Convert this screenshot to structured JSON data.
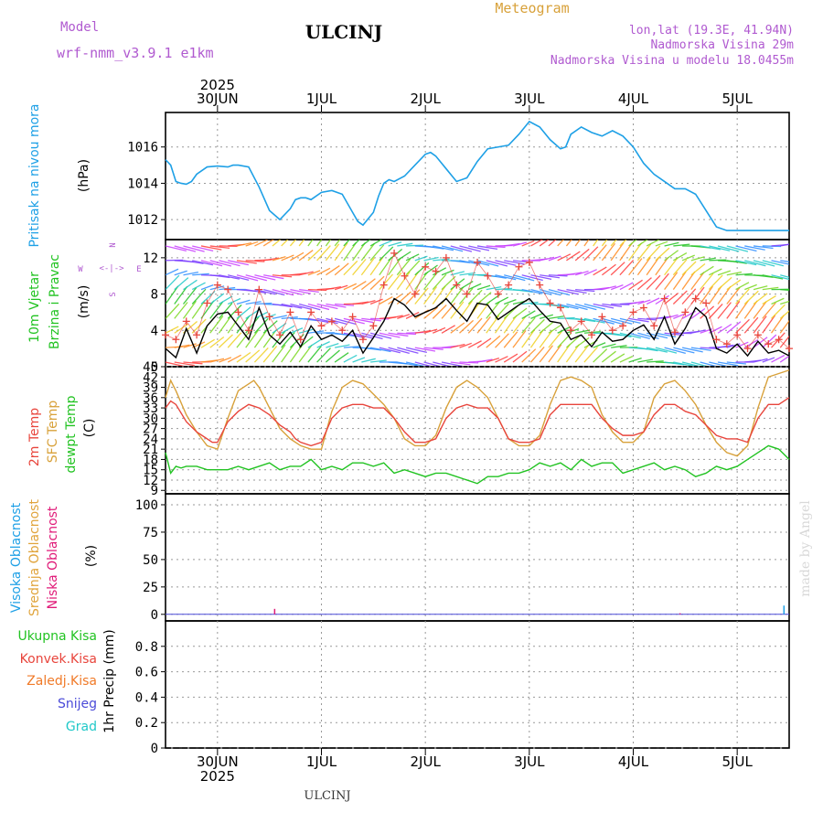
{
  "header": {
    "model_label": "Model",
    "model_name": "wrf-nmm_v3.9.1 e1km",
    "station": "ULCINJ",
    "chart_title": "Meteogram",
    "coords": "lon,lat (19.3E, 41.94N)",
    "elevation": "Nadmorska Visina 29m",
    "model_elevation": "Nadmorska Visina u modelu 18.0455m"
  },
  "footer": {
    "station": "ULCINJ",
    "watermark": "made by Angel"
  },
  "colors": {
    "pressure": "#1ea0e6",
    "temp": "#e8453c",
    "sfc_temp": "#d8a13a",
    "dewpt": "#22c322",
    "high_cloud": "#1ea0e6",
    "mid_cloud": "#e0a43c",
    "low_cloud": "#e01a78",
    "total_precip": "#22c322",
    "conv_precip": "#e8453c",
    "frozen_precip": "#f07a28",
    "snow": "#4a4ad8",
    "graupel": "#20c8c8",
    "model": "#b05ad0"
  },
  "chart_data": [
    {
      "type": "line",
      "panel": "pressure",
      "ylabel": [
        "Pritisak na nivou mora",
        "(hPa)"
      ],
      "ylim": [
        1010.9,
        1017.9
      ],
      "yticks": [
        1012,
        1014,
        1016
      ],
      "x_unit": "days since 30JUN 00:00 (2025)",
      "x_ticks": [
        "30JUN",
        "1JUL",
        "2JUL",
        "3JUL",
        "4JUL",
        "5JUL"
      ],
      "x_year": "2025",
      "xlim": [
        -0.5,
        5.5
      ],
      "series": [
        {
          "name": "Pritisak na nivou mora",
          "x": [
            -0.5,
            -0.45,
            -0.4,
            -0.35,
            -0.3,
            -0.25,
            -0.2,
            -0.1,
            0.0,
            0.1,
            0.15,
            0.2,
            0.3,
            0.4,
            0.5,
            0.6,
            0.7,
            0.75,
            0.8,
            0.85,
            0.9,
            1.0,
            1.1,
            1.2,
            1.3,
            1.35,
            1.4,
            1.5,
            1.55,
            1.6,
            1.65,
            1.7,
            1.8,
            1.9,
            2.0,
            2.05,
            2.1,
            2.2,
            2.3,
            2.4,
            2.5,
            2.6,
            2.7,
            2.8,
            2.9,
            3.0,
            3.1,
            3.2,
            3.3,
            3.35,
            3.4,
            3.5,
            3.6,
            3.7,
            3.8,
            3.9,
            4.0,
            4.1,
            4.2,
            4.3,
            4.4,
            4.5,
            4.6,
            4.7,
            4.8,
            4.9,
            5.0,
            5.1,
            5.2,
            5.3,
            5.4,
            5.5
          ],
          "y": [
            1015.3,
            1015.0,
            1014.1,
            1014.0,
            1013.95,
            1014.1,
            1014.5,
            1014.9,
            1014.95,
            1014.9,
            1015.0,
            1015.0,
            1014.9,
            1013.8,
            1012.5,
            1012.0,
            1012.6,
            1013.1,
            1013.2,
            1013.2,
            1013.1,
            1013.5,
            1013.6,
            1013.4,
            1012.4,
            1011.9,
            1011.7,
            1012.4,
            1013.3,
            1014.0,
            1014.2,
            1014.1,
            1014.4,
            1015.0,
            1015.6,
            1015.7,
            1015.5,
            1014.8,
            1014.1,
            1014.3,
            1015.2,
            1015.9,
            1016.0,
            1016.1,
            1016.7,
            1017.4,
            1017.1,
            1016.4,
            1015.9,
            1016.0,
            1016.7,
            1017.1,
            1016.8,
            1016.6,
            1016.9,
            1016.6,
            1016.0,
            1015.1,
            1014.5,
            1014.1,
            1013.7,
            1013.7,
            1013.4,
            1012.5,
            1011.6,
            1011.4,
            1011.4,
            1011.4,
            1011.4,
            1011.4,
            1011.4,
            1011.4
          ]
        }
      ]
    },
    {
      "type": "line",
      "panel": "wind",
      "ylabel": [
        "10m Vjetar",
        "Brzina i Pravac",
        "(m/s)"
      ],
      "compass": [
        "N",
        "E",
        "S",
        "W"
      ],
      "ylim": [
        0,
        14
      ],
      "yticks": [
        0,
        4,
        8,
        12
      ],
      "series": [
        {
          "name": "Brzina",
          "x": [
            -0.5,
            -0.4,
            -0.3,
            -0.2,
            -0.1,
            0.0,
            0.1,
            0.2,
            0.3,
            0.4,
            0.5,
            0.6,
            0.7,
            0.8,
            0.9,
            1.0,
            1.1,
            1.2,
            1.3,
            1.4,
            1.5,
            1.6,
            1.7,
            1.8,
            1.9,
            2.0,
            2.1,
            2.2,
            2.3,
            2.4,
            2.5,
            2.6,
            2.7,
            2.8,
            2.9,
            3.0,
            3.1,
            3.2,
            3.3,
            3.4,
            3.5,
            3.6,
            3.7,
            3.8,
            3.9,
            4.0,
            4.1,
            4.2,
            4.3,
            4.4,
            4.5,
            4.6,
            4.7,
            4.8,
            4.9,
            5.0,
            5.1,
            5.2,
            5.3,
            5.4,
            5.5
          ],
          "y": [
            2.0,
            1.0,
            4.2,
            1.5,
            4.5,
            5.8,
            6.0,
            4.5,
            3.0,
            6.5,
            3.5,
            2.5,
            3.8,
            2.2,
            4.5,
            3.0,
            3.5,
            2.8,
            4.0,
            1.5,
            3.2,
            5.0,
            7.5,
            6.8,
            5.5,
            6.0,
            6.5,
            7.5,
            6.2,
            5.0,
            7.0,
            6.8,
            5.2,
            6.0,
            6.8,
            7.5,
            6.2,
            5.0,
            4.8,
            3.0,
            3.5,
            2.2,
            3.8,
            2.8,
            3.0,
            4.0,
            4.6,
            3.0,
            5.5,
            2.5,
            4.2,
            6.5,
            5.5,
            2.0,
            1.5,
            2.5,
            1.2,
            2.8,
            1.5,
            1.8,
            1.2
          ]
        },
        {
          "name": "Udari",
          "x": [
            -0.5,
            -0.4,
            -0.3,
            -0.2,
            -0.1,
            0.0,
            0.1,
            0.2,
            0.3,
            0.4,
            0.5,
            0.6,
            0.7,
            0.8,
            0.9,
            1.0,
            1.1,
            1.2,
            1.3,
            1.4,
            1.5,
            1.6,
            1.7,
            1.8,
            1.9,
            2.0,
            2.1,
            2.2,
            2.3,
            2.4,
            2.5,
            2.6,
            2.7,
            2.8,
            2.9,
            3.0,
            3.1,
            3.2,
            3.3,
            3.4,
            3.5,
            3.6,
            3.7,
            3.8,
            3.9,
            4.0,
            4.1,
            4.2,
            4.3,
            4.4,
            4.5,
            4.6,
            4.7,
            4.8,
            4.9,
            5.0,
            5.1,
            5.2,
            5.3,
            5.4,
            5.5
          ],
          "y": [
            3.5,
            3.0,
            5.0,
            3.5,
            7.0,
            9.0,
            8.5,
            6.0,
            4.0,
            8.5,
            5.5,
            3.5,
            6.0,
            3.0,
            6.0,
            4.5,
            5.0,
            4.0,
            5.5,
            3.0,
            4.5,
            9.0,
            12.5,
            10.0,
            8.0,
            11.0,
            10.5,
            12.0,
            9.0,
            8.0,
            11.5,
            10.0,
            8.0,
            9.0,
            11.0,
            11.5,
            9.0,
            7.0,
            6.5,
            4.0,
            5.0,
            3.5,
            5.5,
            4.0,
            4.5,
            6.0,
            6.5,
            4.5,
            7.5,
            3.8,
            6.0,
            7.5,
            7.0,
            3.0,
            2.5,
            3.5,
            2.0,
            3.5,
            2.5,
            3.0,
            2.0
          ]
        }
      ]
    },
    {
      "type": "line",
      "panel": "temperature",
      "ylabel": [
        "2m Temp",
        "SFC Temp",
        "dewpt Temp",
        "(C)"
      ],
      "ylim": [
        8,
        45
      ],
      "yticks": [
        9,
        12,
        15,
        18,
        21,
        24,
        27,
        30,
        33,
        36,
        39,
        42,
        45
      ],
      "series": [
        {
          "name": "2m Temp",
          "x": [
            -0.5,
            -0.45,
            -0.4,
            -0.3,
            -0.2,
            -0.1,
            -0.05,
            0.0,
            0.1,
            0.2,
            0.3,
            0.35,
            0.4,
            0.5,
            0.6,
            0.7,
            0.75,
            0.8,
            0.9,
            1.0,
            1.1,
            1.2,
            1.3,
            1.4,
            1.5,
            1.6,
            1.7,
            1.8,
            1.9,
            2.0,
            2.1,
            2.2,
            2.3,
            2.4,
            2.5,
            2.6,
            2.7,
            2.8,
            2.9,
            3.0,
            3.1,
            3.2,
            3.3,
            3.4,
            3.5,
            3.6,
            3.7,
            3.8,
            3.9,
            4.0,
            4.1,
            4.2,
            4.3,
            4.4,
            4.5,
            4.6,
            4.7,
            4.8,
            4.9,
            5.0,
            5.1,
            5.2,
            5.3,
            5.4,
            5.5
          ],
          "y": [
            33,
            35,
            34,
            29,
            26,
            24,
            23,
            23,
            29,
            32,
            34,
            33.5,
            33,
            31,
            28,
            26,
            24,
            23,
            22,
            23,
            30,
            33,
            34,
            34,
            33,
            33,
            30,
            26,
            23,
            23,
            24,
            30,
            33,
            34,
            33,
            33,
            30,
            24,
            23,
            23,
            24,
            31,
            34,
            34,
            34,
            34,
            30,
            27,
            25,
            25,
            26,
            31,
            34,
            34,
            32,
            31,
            28,
            25,
            24,
            24,
            23,
            30,
            34,
            34,
            36
          ]
        },
        {
          "name": "SFC Temp",
          "x": [
            -0.5,
            -0.45,
            -0.4,
            -0.3,
            -0.2,
            -0.1,
            0.0,
            0.1,
            0.2,
            0.3,
            0.35,
            0.4,
            0.5,
            0.6,
            0.7,
            0.8,
            0.9,
            1.0,
            1.1,
            1.2,
            1.3,
            1.4,
            1.5,
            1.6,
            1.7,
            1.8,
            1.9,
            2.0,
            2.1,
            2.2,
            2.3,
            2.4,
            2.5,
            2.6,
            2.7,
            2.8,
            2.9,
            3.0,
            3.1,
            3.2,
            3.3,
            3.4,
            3.5,
            3.6,
            3.7,
            3.8,
            3.9,
            4.0,
            4.1,
            4.2,
            4.3,
            4.4,
            4.5,
            4.6,
            4.7,
            4.8,
            4.9,
            5.0,
            5.1,
            5.2,
            5.3,
            5.4,
            5.5
          ],
          "y": [
            36,
            41,
            38,
            31,
            26,
            22,
            21,
            30,
            38,
            40,
            41,
            39,
            33,
            27,
            24,
            22,
            21,
            21,
            32,
            39,
            41,
            40,
            37,
            34,
            30,
            24,
            22,
            22,
            25,
            33,
            39,
            41,
            39,
            36,
            30,
            24,
            22,
            22,
            25,
            34,
            41,
            42,
            41,
            39,
            31,
            26,
            23,
            23,
            26,
            36,
            40,
            41,
            38,
            34,
            28,
            23,
            20,
            19,
            22,
            33,
            42,
            43,
            44
          ]
        },
        {
          "name": "dewpt Temp",
          "x": [
            -0.5,
            -0.45,
            -0.4,
            -0.35,
            -0.3,
            -0.2,
            -0.1,
            0.0,
            0.1,
            0.2,
            0.3,
            0.4,
            0.5,
            0.6,
            0.7,
            0.8,
            0.9,
            1.0,
            1.1,
            1.2,
            1.3,
            1.4,
            1.5,
            1.6,
            1.7,
            1.8,
            1.9,
            2.0,
            2.1,
            2.2,
            2.3,
            2.4,
            2.5,
            2.6,
            2.7,
            2.8,
            2.9,
            3.0,
            3.1,
            3.2,
            3.3,
            3.4,
            3.5,
            3.6,
            3.7,
            3.8,
            3.9,
            4.0,
            4.1,
            4.2,
            4.3,
            4.4,
            4.5,
            4.6,
            4.7,
            4.8,
            4.9,
            5.0,
            5.1,
            5.2,
            5.3,
            5.4,
            5.5
          ],
          "y": [
            20,
            14,
            16,
            15.5,
            16,
            16,
            15,
            15,
            15,
            16,
            15,
            16,
            17,
            15,
            16,
            16,
            18,
            15,
            16,
            15,
            17,
            17,
            16,
            17,
            14,
            15,
            14,
            13,
            14,
            14,
            13,
            12,
            11,
            13,
            13,
            14,
            14,
            15,
            17,
            16,
            17,
            15,
            18,
            16,
            17,
            17,
            14,
            15,
            16,
            17,
            15,
            16,
            15,
            13,
            14,
            16,
            15,
            16,
            18,
            20,
            22,
            21,
            18
          ]
        }
      ]
    },
    {
      "type": "bar",
      "panel": "cloud",
      "ylabel": [
        "Visoka Oblacnost",
        "Srednja Oblacnost",
        "Niska Oblacnost",
        "(%)"
      ],
      "ylim": [
        -6,
        110
      ],
      "yticks": [
        0,
        25,
        50,
        75,
        100
      ],
      "series": [
        {
          "name": "Niska Oblacnost",
          "x": [
            0.55,
            4.45
          ],
          "values": [
            5,
            1
          ]
        },
        {
          "name": "Visoka Oblacnost",
          "x": [
            5.45
          ],
          "values": [
            8
          ]
        }
      ]
    },
    {
      "type": "bar",
      "panel": "precip",
      "ylabel": [
        "1hr Precip (mm)"
      ],
      "legend": [
        "Ukupna Kisa",
        "Konvek.Kisa",
        "Zaledj.Kisa",
        "Snijeg",
        "Grad"
      ],
      "ylim": [
        0,
        1.0
      ],
      "yticks": [
        0,
        0.2,
        0.4,
        0.6,
        0.8
      ],
      "series": [
        {
          "name": "Ukupna Kisa",
          "values": []
        }
      ]
    }
  ]
}
